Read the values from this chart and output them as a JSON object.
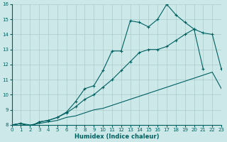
{
  "xlabel": "Humidex (Indice chaleur)",
  "bg_color": "#cce8e8",
  "grid_color": "#aacccc",
  "line_color": "#006060",
  "xlim": [
    0,
    23
  ],
  "ylim": [
    8,
    16
  ],
  "xticks": [
    0,
    1,
    2,
    3,
    4,
    5,
    6,
    7,
    8,
    9,
    10,
    11,
    12,
    13,
    14,
    15,
    16,
    17,
    18,
    19,
    20,
    21,
    22,
    23
  ],
  "yticks": [
    8,
    9,
    10,
    11,
    12,
    13,
    14,
    15,
    16
  ],
  "line_bottom_x": [
    0,
    1,
    2,
    3,
    4,
    5,
    6,
    7,
    8,
    9,
    10,
    11,
    12,
    13,
    14,
    15,
    16,
    17,
    18,
    19,
    20,
    21,
    22,
    23
  ],
  "line_bottom_y": [
    8.0,
    8.1,
    8.0,
    8.1,
    8.2,
    8.3,
    8.5,
    8.6,
    8.8,
    9.0,
    9.1,
    9.3,
    9.5,
    9.7,
    9.9,
    10.1,
    10.3,
    10.5,
    10.7,
    10.9,
    11.1,
    11.3,
    11.5,
    10.4
  ],
  "line_mid_x": [
    0,
    1,
    2,
    3,
    4,
    5,
    6,
    7,
    8,
    9,
    10,
    11,
    12,
    13,
    14,
    15,
    16,
    17,
    18,
    19,
    20,
    21,
    22,
    23
  ],
  "line_mid_y": [
    8.0,
    8.1,
    7.9,
    8.2,
    8.3,
    8.5,
    8.8,
    9.2,
    9.7,
    10.0,
    10.5,
    11.0,
    11.6,
    12.2,
    12.8,
    13.0,
    13.0,
    13.2,
    13.6,
    14.0,
    14.35,
    14.1,
    14.0,
    11.7
  ],
  "line_top_x": [
    0,
    1,
    2,
    3,
    4,
    5,
    6,
    7,
    8,
    9,
    10,
    11,
    12,
    13,
    14,
    15,
    16,
    17,
    18,
    19,
    20,
    21
  ],
  "line_top_y": [
    8.0,
    8.1,
    7.85,
    8.2,
    8.3,
    8.5,
    8.85,
    9.55,
    10.4,
    10.6,
    11.6,
    12.9,
    12.9,
    14.9,
    14.8,
    14.5,
    15.0,
    16.0,
    15.3,
    14.8,
    14.35,
    11.7
  ]
}
